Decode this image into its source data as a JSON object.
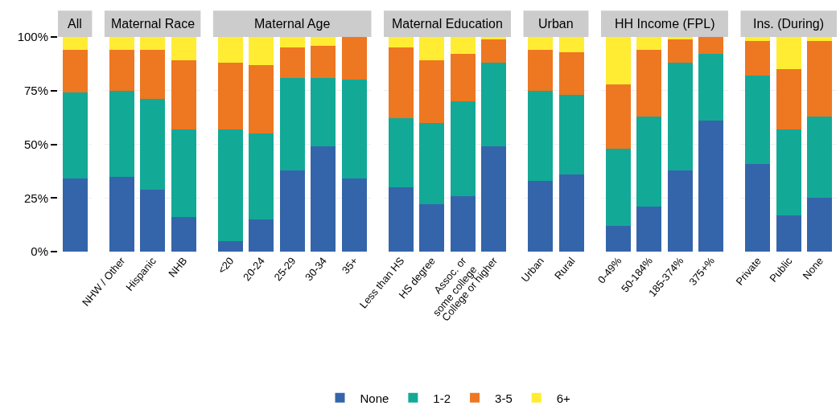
{
  "chart_data": [
    {
      "type": "bar",
      "title": "All",
      "categories": [
        null
      ],
      "stacked": true,
      "ylim": [
        0,
        100
      ],
      "yticks": [
        {
          "value": 0,
          "label": "0%"
        },
        {
          "value": 25,
          "label": "25%"
        },
        {
          "value": 50,
          "label": "50%"
        },
        {
          "value": 75,
          "label": "75%"
        },
        {
          "value": 100,
          "label": "100%"
        }
      ],
      "grid": "y",
      "legend": "bottom",
      "tick_labels": "y",
      "series": [
        {
          "name": "None",
          "color": "#3465aa",
          "values": [
            34
          ]
        },
        {
          "name": "1-2",
          "color": "#13a997",
          "values": [
            40
          ]
        },
        {
          "name": "3-5",
          "color": "#ee7722",
          "values": [
            20
          ]
        },
        {
          "name": "6+",
          "color": "#ffec33",
          "values": [
            6
          ]
        }
      ]
    },
    {
      "type": "bar",
      "title": "Maternal Race",
      "categories": [
        "NHW / Other",
        "Hispanic",
        "NHB"
      ],
      "stacked": true,
      "ylim": [
        0,
        100
      ],
      "yticks": [
        0,
        25,
        50,
        75,
        100
      ],
      "grid": "y",
      "tick_labels": "x",
      "series": [
        {
          "color": "#3465aa",
          "values": [
            35,
            29,
            16
          ]
        },
        {
          "color": "#13a997",
          "values": [
            40,
            42,
            41
          ]
        },
        {
          "color": "#ee7722",
          "values": [
            19,
            23,
            32
          ]
        },
        {
          "color": "#ffec33",
          "values": [
            6,
            6,
            11
          ]
        }
      ]
    },
    {
      "type": "bar",
      "title": "Maternal Age",
      "categories": [
        "<20",
        "20-24",
        "25-29",
        "30-34",
        "35+"
      ],
      "stacked": true,
      "ylim": [
        0,
        100
      ],
      "yticks": [
        0,
        25,
        50,
        75,
        100
      ],
      "grid": "y",
      "tick_labels": "x",
      "series": [
        {
          "color": "#3465aa",
          "values": [
            5,
            15,
            38,
            49,
            34
          ]
        },
        {
          "color": "#13a997",
          "values": [
            52,
            40,
            43,
            32,
            46
          ]
        },
        {
          "color": "#ee7722",
          "values": [
            31,
            32,
            14,
            15,
            20
          ]
        },
        {
          "color": "#ffec33",
          "values": [
            12,
            13,
            5,
            4,
            0
          ]
        }
      ]
    },
    {
      "type": "bar",
      "title": "Maternal Education",
      "categories": [
        "Less than HS",
        "HS degree",
        "Assoc. or\nsome college",
        "College or higher"
      ],
      "stacked": true,
      "ylim": [
        0,
        100
      ],
      "yticks": [
        0,
        25,
        50,
        75,
        100
      ],
      "grid": "y",
      "tick_labels": "x",
      "series": [
        {
          "color": "#3465aa",
          "values": [
            30,
            22,
            26,
            49
          ]
        },
        {
          "color": "#13a997",
          "values": [
            32,
            38,
            44,
            39
          ]
        },
        {
          "color": "#ee7722",
          "values": [
            33,
            29,
            22,
            11
          ]
        },
        {
          "color": "#ffec33",
          "values": [
            5,
            11,
            8,
            1
          ]
        }
      ]
    },
    {
      "type": "bar",
      "title": "Urban",
      "categories": [
        "Urban",
        "Rural"
      ],
      "stacked": true,
      "ylim": [
        0,
        100
      ],
      "yticks": [
        0,
        25,
        50,
        75,
        100
      ],
      "grid": "y",
      "tick_labels": "x",
      "series": [
        {
          "color": "#3465aa",
          "values": [
            33,
            36
          ]
        },
        {
          "color": "#13a997",
          "values": [
            42,
            37
          ]
        },
        {
          "color": "#ee7722",
          "values": [
            19,
            20
          ]
        },
        {
          "color": "#ffec33",
          "values": [
            6,
            7
          ]
        }
      ]
    },
    {
      "type": "bar",
      "title": "HH Income (FPL)",
      "categories": [
        "0-49%",
        "50-184%",
        "185-374%",
        "375+%"
      ],
      "stacked": true,
      "ylim": [
        0,
        100
      ],
      "yticks": [
        0,
        25,
        50,
        75,
        100
      ],
      "grid": "y",
      "tick_labels": "x",
      "series": [
        {
          "color": "#3465aa",
          "values": [
            12,
            21,
            38,
            61
          ]
        },
        {
          "color": "#13a997",
          "values": [
            36,
            42,
            50,
            31
          ]
        },
        {
          "color": "#ee7722",
          "values": [
            30,
            31,
            11,
            8
          ]
        },
        {
          "color": "#ffec33",
          "values": [
            22,
            6,
            1,
            0
          ]
        }
      ]
    },
    {
      "type": "bar",
      "title": "Ins. (During)",
      "categories": [
        "Private",
        "Public",
        "None"
      ],
      "stacked": true,
      "ylim": [
        0,
        100
      ],
      "yticks": [
        0,
        25,
        50,
        75,
        100
      ],
      "grid": "y",
      "tick_labels": "x",
      "series": [
        {
          "color": "#3465aa",
          "values": [
            41,
            17,
            25
          ]
        },
        {
          "color": "#13a997",
          "values": [
            41,
            40,
            38
          ]
        },
        {
          "color": "#ee7722",
          "values": [
            16,
            28,
            35
          ]
        },
        {
          "color": "#ffec33",
          "values": [
            2,
            15,
            2
          ]
        }
      ]
    }
  ]
}
